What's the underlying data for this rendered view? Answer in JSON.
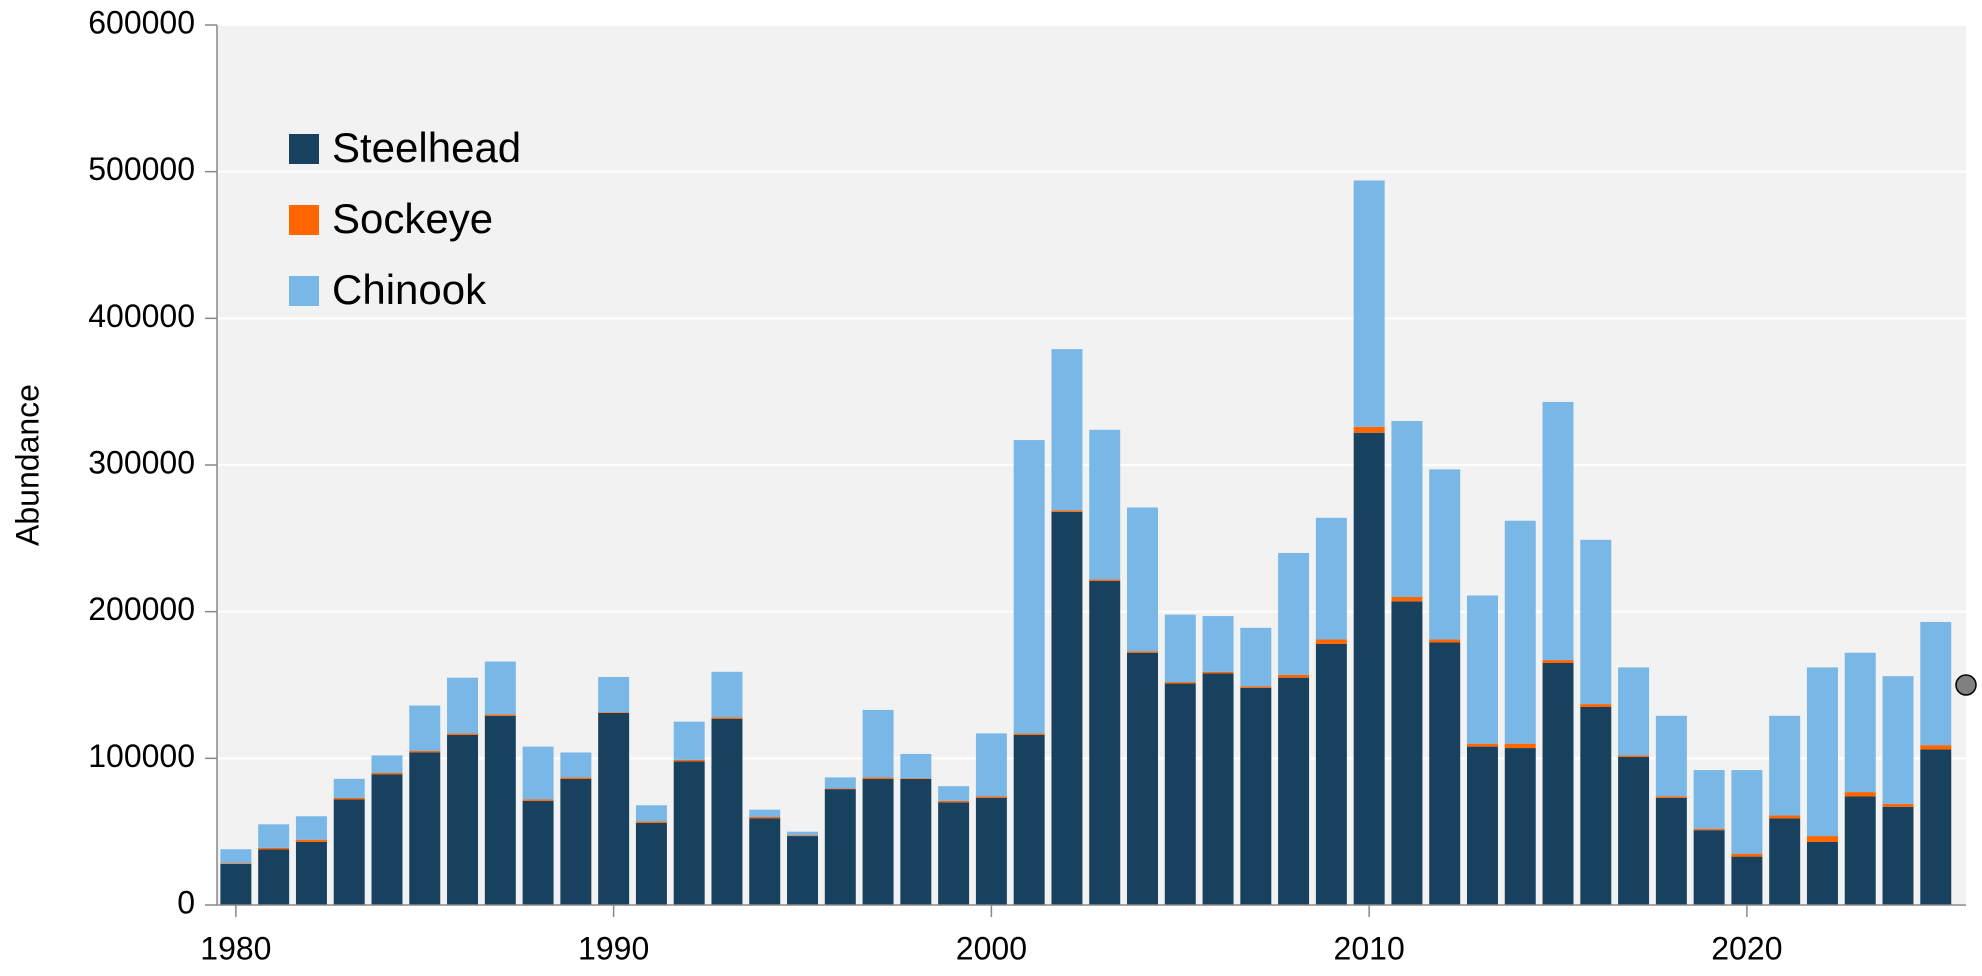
{
  "chart_data": {
    "type": "stacked_bar",
    "y_label": "Abundance",
    "x": [
      1980,
      1981,
      1982,
      1983,
      1984,
      1985,
      1986,
      1987,
      1988,
      1989,
      1990,
      1991,
      1992,
      1993,
      1994,
      1995,
      1996,
      1997,
      1998,
      1999,
      2000,
      2001,
      2002,
      2003,
      2004,
      2005,
      2006,
      2007,
      2008,
      2009,
      2010,
      2011,
      2012,
      2013,
      2014,
      2015,
      2016,
      2017,
      2018,
      2019,
      2020,
      2021,
      2022,
      2023,
      2024,
      2025
    ],
    "series": [
      {
        "name": "Steelhead",
        "color": "#17415f",
        "values": [
          28000,
          38000,
          43000,
          72000,
          89000,
          104000,
          116000,
          129000,
          71000,
          86000,
          131000,
          56000,
          98000,
          127000,
          59000,
          47000,
          79000,
          86000,
          86000,
          70000,
          73000,
          116000,
          268000,
          221000,
          172000,
          151000,
          158000,
          148000,
          155000,
          178000,
          322000,
          207000,
          179000,
          108000,
          107000,
          165000,
          135000,
          101000,
          73000,
          51000,
          33000,
          59000,
          43000,
          74000,
          67000,
          106000
        ]
      },
      {
        "name": "Sockeye",
        "color": "#ff6600",
        "values": [
          500,
          1000,
          1500,
          1000,
          1000,
          1000,
          1000,
          1000,
          1000,
          1000,
          500,
          1000,
          1000,
          1000,
          1000,
          500,
          500,
          1000,
          500,
          1000,
          1000,
          1000,
          1000,
          1000,
          1000,
          1000,
          1000,
          1000,
          2000,
          3000,
          4000,
          3000,
          2000,
          2000,
          3000,
          2000,
          2000,
          1000,
          1000,
          1000,
          2000,
          2000,
          4000,
          3000,
          2000,
          3000
        ]
      },
      {
        "name": "Chinook",
        "color": "#79b7e6",
        "values": [
          9500,
          16000,
          16000,
          13000,
          12000,
          31000,
          38000,
          36000,
          36000,
          17000,
          24000,
          11000,
          26000,
          31000,
          5000,
          2500,
          7500,
          46000,
          16500,
          10000,
          43000,
          200000,
          110000,
          102000,
          98000,
          46000,
          38000,
          40000,
          83000,
          83000,
          168000,
          120000,
          116000,
          101000,
          152000,
          176000,
          112000,
          60000,
          55000,
          40000,
          57000,
          68000,
          115000,
          95000,
          87000,
          84000
        ]
      }
    ],
    "forecast_marker": {
      "value": 150000,
      "color": "#808080"
    },
    "xlim": [
      1979.5,
      2025.8
    ],
    "xticks": [
      1980,
      1990,
      2000,
      2010,
      2020
    ],
    "ylim": [
      0,
      600000
    ],
    "yticks": [
      0,
      100000,
      200000,
      300000,
      400000,
      500000,
      600000
    ],
    "grid": true,
    "legend": "upper left"
  }
}
